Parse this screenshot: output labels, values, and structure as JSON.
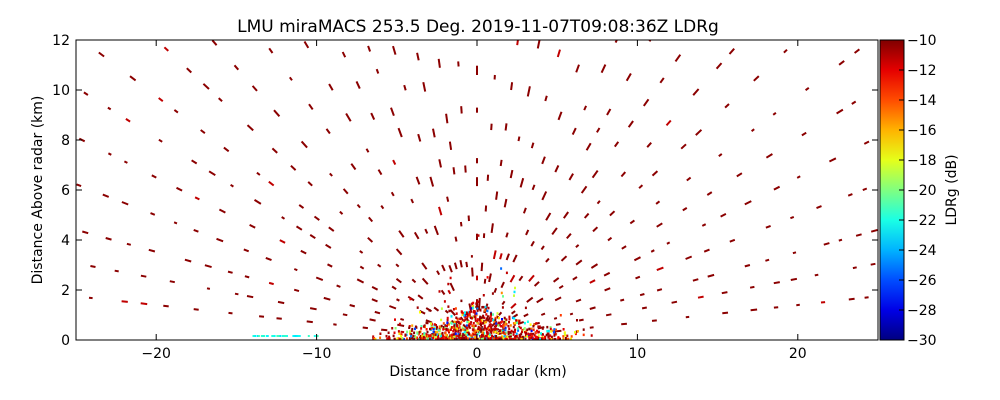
{
  "chart_data": {
    "type": "heatmap",
    "title": "LMU miraMACS 253.5 Deg. 2019-11-07T09:08:36Z  LDRg",
    "xlabel": "Distance from radar (km)",
    "ylabel": "Distance Above radar  (km)",
    "xlim": [
      -25,
      25
    ],
    "ylim": [
      0,
      12
    ],
    "x_ticks": [
      -20,
      -10,
      0,
      10,
      20
    ],
    "x_tick_labels": [
      "−20",
      "−10",
      "0",
      "10",
      "20"
    ],
    "y_ticks": [
      0,
      2,
      4,
      6,
      8,
      10,
      12
    ],
    "y_tick_labels": [
      "0",
      "2",
      "4",
      "6",
      "8",
      "10",
      "12"
    ],
    "colorbar": {
      "label": "LDRg (dB)",
      "range": [
        -30,
        -10
      ],
      "ticks": [
        -10,
        -12,
        -14,
        -16,
        -18,
        -20,
        -22,
        -24,
        -26,
        -28,
        -30
      ],
      "tick_labels": [
        "−10",
        "−12",
        "−14",
        "−16",
        "−18",
        "−20",
        "−22",
        "−24",
        "−26",
        "−28",
        "−30"
      ],
      "colormap": "jet"
    },
    "grid": false,
    "scan_elevation_angles_deg": [
      4,
      7,
      10,
      14,
      18,
      22,
      26,
      31,
      36,
      42,
      48,
      54,
      60,
      66,
      72,
      78,
      84,
      90,
      96,
      102,
      108,
      114,
      120,
      126,
      132,
      138,
      144,
      149,
      154,
      158,
      162,
      166,
      170,
      173,
      176
    ]
  }
}
